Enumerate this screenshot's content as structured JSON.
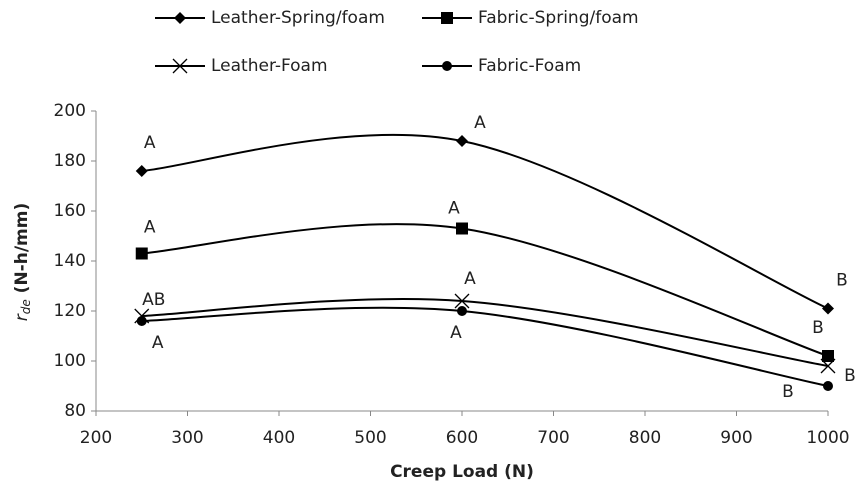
{
  "chart_data": {
    "type": "line",
    "xlabel": "Creep Load (N)",
    "ylabel": [
      "r",
      "de",
      " (N-h/mm)"
    ],
    "x": [
      250,
      600,
      1000
    ],
    "xlim": [
      200,
      1000
    ],
    "xticks": [
      200,
      300,
      400,
      500,
      600,
      700,
      800,
      900,
      1000
    ],
    "ylim": [
      80,
      200
    ],
    "yticks": [
      80,
      100,
      120,
      140,
      160,
      180,
      200
    ],
    "smooth": true,
    "series": [
      {
        "name": "Leather-Spring/foam",
        "color": "#000000",
        "marker": "diamond",
        "values": [
          176,
          188,
          121
        ],
        "annotations": [
          "A",
          "A",
          "B"
        ]
      },
      {
        "name": "Fabric-Spring/foam",
        "color": "#000000",
        "marker": "square",
        "values": [
          143,
          153,
          102
        ],
        "annotations": [
          "A",
          "A",
          "B"
        ]
      },
      {
        "name": "Leather-Foam",
        "color": "#000000",
        "marker": "x",
        "values": [
          118,
          124,
          98
        ],
        "annotations": [
          "AB",
          "A",
          "B"
        ]
      },
      {
        "name": "Fabric-Foam",
        "color": "#000000",
        "marker": "circle",
        "values": [
          116,
          120,
          90
        ],
        "annotations": [
          "A",
          "A",
          "B"
        ]
      }
    ]
  }
}
